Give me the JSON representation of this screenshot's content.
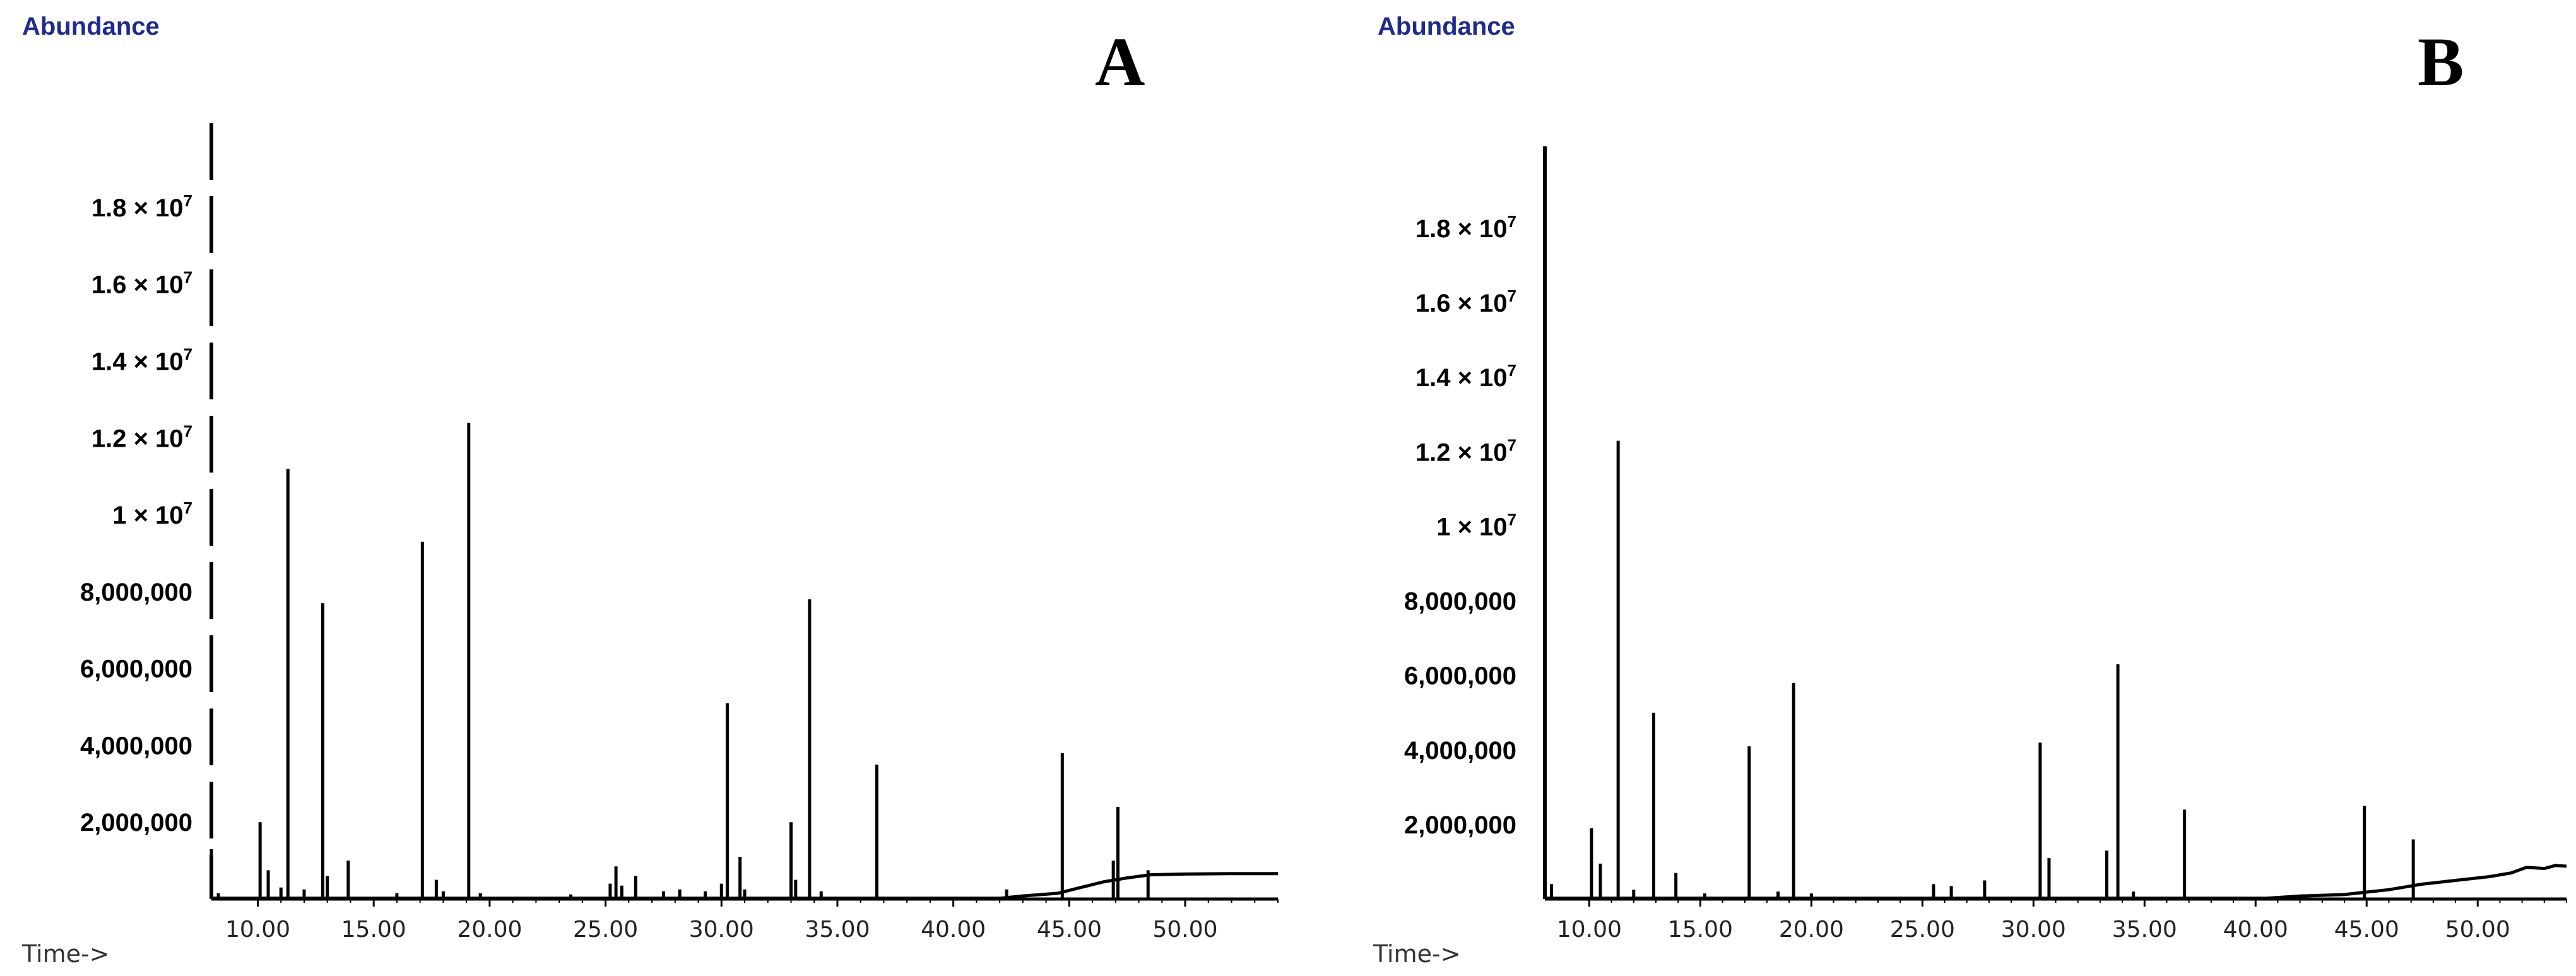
{
  "chart_data": [
    {
      "type": "line",
      "panel_label": "A",
      "ylabel": "Abundance",
      "xlabel": "Time->",
      "xlim": [
        8,
        54
      ],
      "ylim": [
        0,
        20200000
      ],
      "xticks": [
        10,
        15,
        20,
        25,
        30,
        35,
        40,
        45,
        50
      ],
      "xtick_labels": [
        "10.00",
        "15.00",
        "20.00",
        "25.00",
        "30.00",
        "35.00",
        "40.00",
        "45.00",
        "50.00"
      ],
      "ytick_labels": [
        {
          "value": 2000000,
          "text": "2,000,000",
          "exp": ""
        },
        {
          "value": 4000000,
          "text": "4,000,000",
          "exp": ""
        },
        {
          "value": 6000000,
          "text": "6,000,000",
          "exp": ""
        },
        {
          "value": 8000000,
          "text": "8,000,000",
          "exp": ""
        },
        {
          "value": 10000000,
          "text": "1 × 10",
          "exp": "7"
        },
        {
          "value": 12000000,
          "text": "1.2 × 10",
          "exp": "7"
        },
        {
          "value": 14000000,
          "text": "1.4 × 10",
          "exp": "7"
        },
        {
          "value": 16000000,
          "text": "1.6 × 10",
          "exp": "7"
        },
        {
          "value": 18000000,
          "text": "1.8 × 10",
          "exp": "7"
        }
      ],
      "peaks": [
        [
          8.0,
          1300000
        ],
        [
          8.3,
          150000
        ],
        [
          10.1,
          2000000
        ],
        [
          10.45,
          750000
        ],
        [
          11.0,
          300000
        ],
        [
          11.3,
          11200000
        ],
        [
          12.0,
          250000
        ],
        [
          12.8,
          7700000
        ],
        [
          13.0,
          600000
        ],
        [
          13.9,
          1000000
        ],
        [
          16.0,
          150000
        ],
        [
          17.1,
          9300000
        ],
        [
          17.7,
          500000
        ],
        [
          18.0,
          200000
        ],
        [
          19.1,
          12400000
        ],
        [
          19.6,
          150000
        ],
        [
          23.5,
          120000
        ],
        [
          25.2,
          400000
        ],
        [
          25.45,
          850000
        ],
        [
          25.7,
          350000
        ],
        [
          26.3,
          600000
        ],
        [
          27.5,
          200000
        ],
        [
          28.2,
          250000
        ],
        [
          29.3,
          200000
        ],
        [
          30.0,
          400000
        ],
        [
          30.25,
          5100000
        ],
        [
          30.8,
          1100000
        ],
        [
          31.0,
          250000
        ],
        [
          33.0,
          2000000
        ],
        [
          33.2,
          500000
        ],
        [
          33.8,
          7800000
        ],
        [
          34.3,
          200000
        ],
        [
          36.7,
          3500000
        ],
        [
          42.3,
          250000
        ],
        [
          44.7,
          3800000
        ],
        [
          46.9,
          1000000
        ],
        [
          47.1,
          2400000
        ],
        [
          48.4,
          750000
        ]
      ],
      "baseline": [
        [
          8,
          20000
        ],
        [
          42.0,
          20000
        ],
        [
          43.0,
          80000
        ],
        [
          44.5,
          150000
        ],
        [
          45.5,
          300000
        ],
        [
          46.5,
          450000
        ],
        [
          47.5,
          550000
        ],
        [
          48.5,
          630000
        ],
        [
          50.0,
          650000
        ],
        [
          52.0,
          660000
        ],
        [
          54,
          660000
        ]
      ]
    },
    {
      "type": "line",
      "panel_label": "B",
      "ylabel": "Abundance",
      "xlabel": "Time->",
      "xlim": [
        8,
        54
      ],
      "ylim": [
        0,
        20200000
      ],
      "xticks": [
        10,
        15,
        20,
        25,
        30,
        35,
        40,
        45,
        50
      ],
      "xtick_labels": [
        "10.00",
        "15.00",
        "20.00",
        "25.00",
        "30.00",
        "35.00",
        "40.00",
        "45.00",
        "50.00"
      ],
      "ytick_labels": [
        {
          "value": 2000000,
          "text": "2,000,000",
          "exp": ""
        },
        {
          "value": 4000000,
          "text": "4,000,000",
          "exp": ""
        },
        {
          "value": 6000000,
          "text": "6,000,000",
          "exp": ""
        },
        {
          "value": 8000000,
          "text": "8,000,000",
          "exp": ""
        },
        {
          "value": 10000000,
          "text": "1 × 10",
          "exp": "7"
        },
        {
          "value": 12000000,
          "text": "1.2 × 10",
          "exp": "7"
        },
        {
          "value": 14000000,
          "text": "1.4 × 10",
          "exp": "7"
        },
        {
          "value": 16000000,
          "text": "1.6 × 10",
          "exp": "7"
        },
        {
          "value": 18000000,
          "text": "1.8 × 10",
          "exp": "7"
        }
      ],
      "peaks": [
        [
          8.0,
          20000000
        ],
        [
          8.3,
          400000
        ],
        [
          10.1,
          1900000
        ],
        [
          10.5,
          950000
        ],
        [
          11.3,
          12300000
        ],
        [
          12.0,
          250000
        ],
        [
          12.9,
          5000000
        ],
        [
          13.9,
          700000
        ],
        [
          15.2,
          150000
        ],
        [
          17.2,
          4100000
        ],
        [
          18.5,
          200000
        ],
        [
          19.2,
          5800000
        ],
        [
          20.0,
          150000
        ],
        [
          25.5,
          400000
        ],
        [
          26.3,
          350000
        ],
        [
          27.8,
          500000
        ],
        [
          30.3,
          4200000
        ],
        [
          30.7,
          1100000
        ],
        [
          33.3,
          1300000
        ],
        [
          33.8,
          6300000
        ],
        [
          34.5,
          200000
        ],
        [
          36.8,
          2400000
        ],
        [
          44.9,
          2500000
        ],
        [
          47.1,
          1600000
        ]
      ],
      "baseline": [
        [
          8,
          20000
        ],
        [
          40.5,
          20000
        ],
        [
          42.0,
          80000
        ],
        [
          44.0,
          120000
        ],
        [
          46.0,
          250000
        ],
        [
          47.5,
          400000
        ],
        [
          49.0,
          500000
        ],
        [
          50.5,
          600000
        ],
        [
          51.5,
          700000
        ],
        [
          52.2,
          850000
        ],
        [
          53.0,
          820000
        ],
        [
          53.5,
          900000
        ],
        [
          54,
          880000
        ]
      ]
    }
  ]
}
